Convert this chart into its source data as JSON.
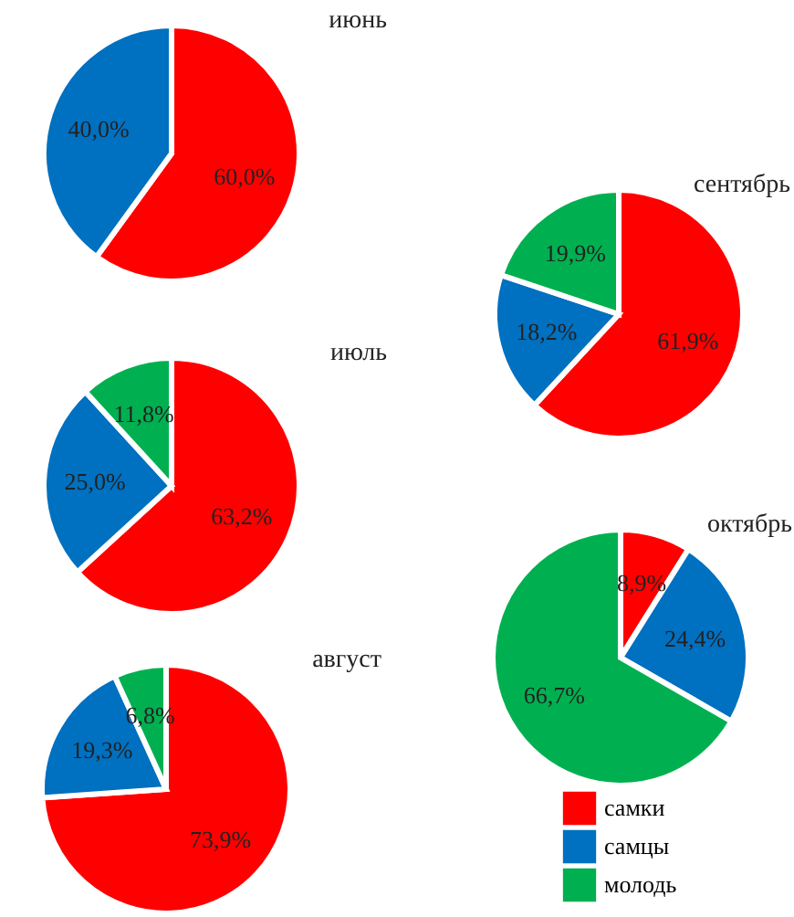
{
  "chart_data": [
    {
      "type": "pie",
      "title": "июнь",
      "categories": [
        null,
        null
      ],
      "values": [
        60.0,
        40.0
      ],
      "colors": [
        "#ff0000",
        "#0070c0"
      ],
      "value_labels": [
        "60,0%",
        "40,0%"
      ]
    },
    {
      "type": "pie",
      "title": "июль",
      "categories": [
        null,
        null,
        null
      ],
      "values": [
        63.2,
        25.0,
        11.8
      ],
      "colors": [
        "#ff0000",
        "#0070c0",
        "#00b050"
      ],
      "value_labels": [
        "63,2%",
        "25,0%",
        "11,8%"
      ]
    },
    {
      "type": "pie",
      "title": "август",
      "categories": [
        null,
        null,
        null
      ],
      "values": [
        73.9,
        19.3,
        6.8
      ],
      "colors": [
        "#ff0000",
        "#0070c0",
        "#00b050"
      ],
      "value_labels": [
        "73,9%",
        "19,3%",
        "6,8%"
      ]
    },
    {
      "type": "pie",
      "title": "сентябрь",
      "categories": [
        null,
        null,
        null
      ],
      "values": [
        61.9,
        18.2,
        19.9
      ],
      "colors": [
        "#ff0000",
        "#0070c0",
        "#00b050"
      ],
      "value_labels": [
        "61,9%",
        "18,2%",
        "19,9%"
      ]
    },
    {
      "type": "pie",
      "title": "октябрь",
      "categories": [
        "самки",
        "самцы",
        "молодь"
      ],
      "values": [
        8.9,
        24.4,
        66.7
      ],
      "colors": [
        "#ff0000",
        "#0070c0",
        "#00b050"
      ],
      "value_labels": [
        "8,9%",
        "24,4%",
        "66,7%"
      ],
      "legend": "bottom"
    }
  ]
}
